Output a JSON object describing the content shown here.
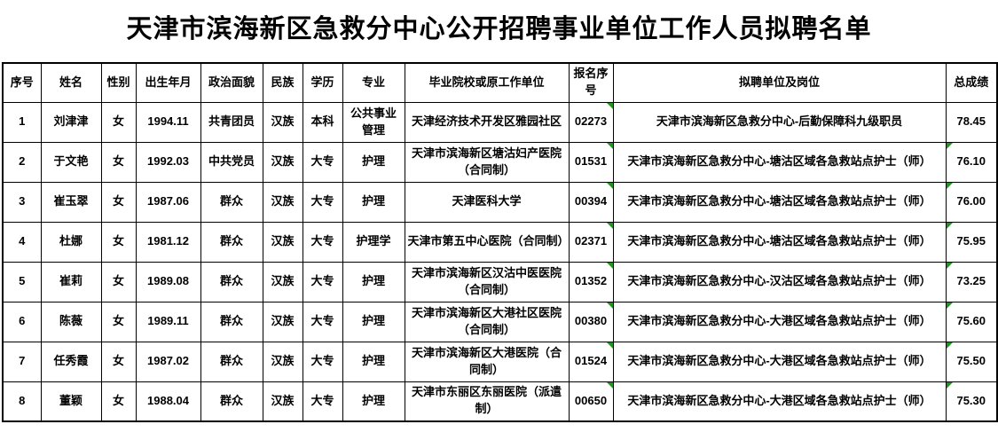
{
  "page": {
    "title": "天津市滨海新区急救分中心公开招聘事业单位工作人员拟聘名单"
  },
  "colors": {
    "background": "#ffffff",
    "border": "#000000",
    "text": "#000000",
    "indicator_green": "#21961f"
  },
  "table": {
    "headers": [
      "序号",
      "姓名",
      "性别",
      "出生年月",
      "政治面貌",
      "民族",
      "学历",
      "专业",
      "毕业院校或原工作单位",
      "报名序号",
      "拟聘单位及岗位",
      "总成绩"
    ],
    "rows": [
      [
        "1",
        "刘津津",
        "女",
        "1994.11",
        "共青团员",
        "汉族",
        "本科",
        "公共事业管理",
        "天津经济技术开发区雅园社区",
        "02273",
        "天津市滨海新区急救分中心-后勤保障科九级职员",
        "78.45"
      ],
      [
        "2",
        "于文艳",
        "女",
        "1992.03",
        "中共党员",
        "汉族",
        "大专",
        "护理",
        "天津市滨海新区塘沽妇产医院（合同制）",
        "01531",
        "天津市滨海新区急救分中心-塘沽区域各急救站点护士（师）",
        "76.10"
      ],
      [
        "3",
        "崔玉翠",
        "女",
        "1987.06",
        "群众",
        "汉族",
        "大专",
        "护理",
        "天津医科大学",
        "00394",
        "天津市滨海新区急救分中心-塘沽区域各急救站点护士（师）",
        "76.00"
      ],
      [
        "4",
        "杜娜",
        "女",
        "1981.12",
        "群众",
        "汉族",
        "大专",
        "护理学",
        "天津市第五中心医院（合同制）",
        "02371",
        "天津市滨海新区急救分中心-塘沽区域各急救站点护士（师）",
        "75.95"
      ],
      [
        "5",
        "崔莉",
        "女",
        "1989.08",
        "群众",
        "汉族",
        "大专",
        "护理",
        "天津市滨海新区汉沽中医医院（合同制）",
        "01352",
        "天津市滨海新区急救分中心-汉沽区域各急救站点护士（师）",
        "73.25"
      ],
      [
        "6",
        "陈薇",
        "女",
        "1989.11",
        "群众",
        "汉族",
        "大专",
        "护理",
        "天津市滨海新区大港社区医院（合同制）",
        "00380",
        "天津市滨海新区急救分中心-大港区域各急救站点护士（师）",
        "75.60"
      ],
      [
        "7",
        "任秀霞",
        "女",
        "1987.02",
        "群众",
        "汉族",
        "大专",
        "护理",
        "天津市滨海新区大港医院（合同制）",
        "01524",
        "天津市滨海新区急救分中心-大港区域各急救站点护士（师）",
        "75.50"
      ],
      [
        "8",
        "董颖",
        "女",
        "1988.04",
        "群众",
        "汉族",
        "大专",
        "护理",
        "天津市东丽区东丽医院（派遣制）",
        "00650",
        "天津市滨海新区急救分中心-大港区域各急救站点护士（师）",
        "75.30"
      ]
    ],
    "indicators": {
      "note": "small green triangle marks visible at cell corners",
      "reg_no_rows": [
        1,
        2,
        3,
        4,
        5,
        6,
        7,
        8
      ],
      "score_rows": [
        2,
        3,
        4,
        5,
        6,
        7,
        8
      ]
    }
  }
}
